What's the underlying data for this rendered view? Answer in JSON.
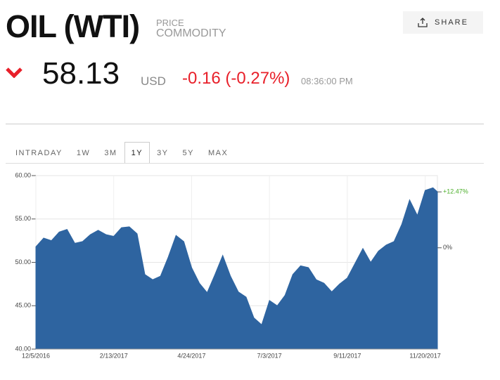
{
  "header": {
    "title": "OIL (WTI)",
    "kind": "PRICE",
    "category": "COMMODITY",
    "share": "SHARE",
    "price": "58.13",
    "currency": "USD",
    "change": "-0.16 (-0.27%)",
    "time": "08:36:00 PM"
  },
  "tabs": {
    "items": [
      "INTRADAY",
      "1W",
      "3M",
      "1Y",
      "3Y",
      "5Y",
      "MAX"
    ],
    "active": "1Y"
  },
  "chart_data": {
    "type": "area",
    "color": "#2e64a0",
    "grid": true,
    "x": [
      "12/5/2016",
      "12/12/2016",
      "12/19/2016",
      "12/26/2016",
      "1/2/2017",
      "1/9/2017",
      "1/16/2017",
      "1/23/2017",
      "1/30/2017",
      "2/6/2017",
      "2/13/2017",
      "2/20/2017",
      "2/27/2017",
      "3/6/2017",
      "3/13/2017",
      "3/20/2017",
      "3/27/2017",
      "4/3/2017",
      "4/10/2017",
      "4/17/2017",
      "4/24/2017",
      "5/1/2017",
      "5/8/2017",
      "5/15/2017",
      "5/22/2017",
      "5/29/2017",
      "6/5/2017",
      "6/12/2017",
      "6/19/2017",
      "6/26/2017",
      "7/3/2017",
      "7/10/2017",
      "7/17/2017",
      "7/24/2017",
      "7/31/2017",
      "8/7/2017",
      "8/14/2017",
      "8/21/2017",
      "8/28/2017",
      "9/4/2017",
      "9/11/2017",
      "9/18/2017",
      "9/25/2017",
      "10/2/2017",
      "10/9/2017",
      "10/16/2017",
      "10/23/2017",
      "10/30/2017",
      "11/6/2017",
      "11/13/2017",
      "11/20/2017",
      "11/27/2017",
      "12/1/2017"
    ],
    "values": [
      51.8,
      52.8,
      52.5,
      53.5,
      53.8,
      52.2,
      52.4,
      53.2,
      53.7,
      53.2,
      53.0,
      54.0,
      54.1,
      53.3,
      48.6,
      48.0,
      48.4,
      50.6,
      53.1,
      52.4,
      49.4,
      47.6,
      46.5,
      48.6,
      50.8,
      48.4,
      46.6,
      46.0,
      43.6,
      42.8,
      45.6,
      45.0,
      46.2,
      48.6,
      49.6,
      49.4,
      48.0,
      47.6,
      46.6,
      47.5,
      48.2,
      49.9,
      51.6,
      50.0,
      51.3,
      52.0,
      52.4,
      54.4,
      57.2,
      55.4,
      58.3,
      58.6,
      58.13
    ],
    "xlim": [
      "12/5/2016",
      "12/1/2017"
    ],
    "xticks": [
      "12/5/2016",
      "2/13/2017",
      "4/24/2017",
      "7/3/2017",
      "9/11/2017",
      "11/20/2017"
    ],
    "ylim": [
      40,
      60
    ],
    "yticks": [
      {
        "value": 40,
        "label": "40.00"
      },
      {
        "value": 45,
        "label": "45.00"
      },
      {
        "value": 50,
        "label": "50.00"
      },
      {
        "value": 55,
        "label": "55.00"
      },
      {
        "value": 60,
        "label": "60.00"
      }
    ],
    "y2lim": [
      -22.6,
      16.1
    ],
    "y2ticks": [
      {
        "value": 12.47,
        "label": "+12.47%"
      },
      {
        "value": 0,
        "label": "0%"
      }
    ]
  }
}
